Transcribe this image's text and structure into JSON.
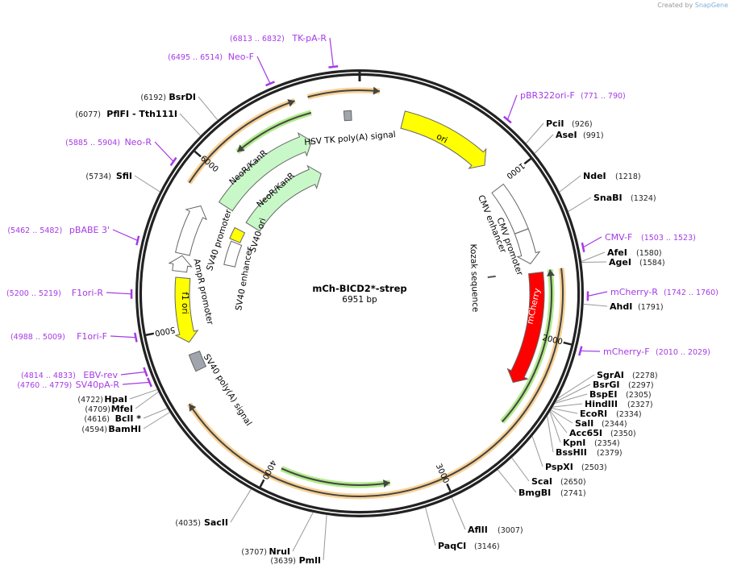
{
  "credit": {
    "prefix": "Created by",
    "brand": "SnapGene"
  },
  "plasmid": {
    "name": "mCh-BICD2*-strep",
    "length_label": "6951 bp",
    "length": 6951
  },
  "ticks": [
    "1000",
    "2000",
    "3000",
    "4000",
    "5000",
    "6000"
  ],
  "colors": {
    "yellow": "#ffff00",
    "lightgreen": "#c8f8c8",
    "red": "#ff0000",
    "grey": "#a0a4ac",
    "orange": "#f7c77c",
    "green": "#9ee66e",
    "primer": "#a53ae6"
  },
  "features": [
    {
      "name": "ori",
      "start": 270,
      "end": 855,
      "strand": 1,
      "color": "#ffff00",
      "shape": "arrow"
    },
    {
      "name": "CMV enhancer",
      "start": 1019,
      "end": 1332,
      "strand": 1,
      "color": "#ffffff",
      "shape": "box"
    },
    {
      "name": "CMV promoter",
      "start": 1333,
      "end": 1548,
      "strand": 1,
      "color": "#ffffff",
      "shape": "arrow"
    },
    {
      "name": "Kozak sequence",
      "start": 1600,
      "end": 1609,
      "strand": 0,
      "color": "#888888",
      "shape": "mark"
    },
    {
      "name": "mCherry",
      "start": 1610,
      "end": 2320,
      "strand": 1,
      "color": "#ff0000",
      "shape": "arrow"
    },
    {
      "name": "",
      "start": 1600,
      "end": 2550,
      "strand": -1,
      "color": "#9ee66e",
      "shape": "line"
    },
    {
      "name": "",
      "start": 3300,
      "end": 3940,
      "strand": -1,
      "color": "#9ee66e",
      "shape": "line"
    },
    {
      "name": "",
      "start": 1600,
      "end": 4576,
      "strand": 1,
      "color": "#f7c77c",
      "shape": "line"
    },
    {
      "name": "",
      "start": 5850,
      "end": 6592,
      "strand": 1,
      "color": "#f7c77c",
      "shape": "line"
    },
    {
      "name": "",
      "start": 6665,
      "end": 110,
      "strand": 1,
      "color": "#f7c77c",
      "shape": "line"
    },
    {
      "name": "",
      "start": 6163,
      "end": 6661,
      "strand": -1,
      "color": "#9ee66e",
      "shape": "line"
    },
    {
      "name": "NeoR/KanR",
      "start": 5850,
      "end": 6613,
      "strand": 1,
      "color": "#c8f8c8",
      "shape": "arrow"
    },
    {
      "name": "NeoR/KanR",
      "start": 5830,
      "end": 6607,
      "strand": 1,
      "color": "#c8f8c8",
      "shape": "arrow"
    },
    {
      "name": "HSV TK poly(A) signal",
      "start": 6855,
      "end": 6900,
      "strand": 0,
      "color": "#a0a4ac",
      "shape": "box"
    },
    {
      "name": "SV40 promoter",
      "start": 5456,
      "end": 5770,
      "strand": 1,
      "color": "#ffffff",
      "shape": "arrow"
    },
    {
      "name": "AmpR promoter",
      "start": 5348,
      "end": 5445,
      "strand": 1,
      "color": "#ffffff",
      "shape": "arrow"
    },
    {
      "name": "f1 ori",
      "start": 4904,
      "end": 5310,
      "strand": -1,
      "color": "#ffff00",
      "shape": "arrow"
    },
    {
      "name": "SV40 poly(A) signal",
      "start": 4722,
      "end": 4830,
      "strand": 0,
      "color": "#a0a4ac",
      "shape": "box"
    },
    {
      "name": "SV40 ori",
      "start": 5656,
      "end": 5750,
      "strand": 0,
      "color": "#ffff00",
      "shape": "box"
    },
    {
      "name": "SV40 enhancer",
      "start": 5445,
      "end": 5640,
      "strand": 0,
      "color": "#ffffff",
      "shape": "box"
    }
  ],
  "sites": [
    {
      "name": "PciI",
      "pos": "926",
      "bp": 926
    },
    {
      "name": "AseI",
      "pos": "991",
      "bp": 991
    },
    {
      "name": "NdeI",
      "pos": "1218",
      "bp": 1218
    },
    {
      "name": "SnaBI",
      "pos": "1324",
      "bp": 1324
    },
    {
      "name": "AfeI",
      "pos": "1580",
      "bp": 1580
    },
    {
      "name": "AgeI",
      "pos": "1584",
      "bp": 1584
    },
    {
      "name": "AhdI",
      "pos": "1791",
      "bp": 1791
    },
    {
      "name": "SgrAI",
      "pos": "2278",
      "bp": 2278
    },
    {
      "name": "BsrGI",
      "pos": "2297",
      "bp": 2297
    },
    {
      "name": "BspEI",
      "pos": "2305",
      "bp": 2305
    },
    {
      "name": "HindIII",
      "pos": "2327",
      "bp": 2327
    },
    {
      "name": "EcoRI",
      "pos": "2334",
      "bp": 2334
    },
    {
      "name": "SalI",
      "pos": "2344",
      "bp": 2344
    },
    {
      "name": "Acc65I",
      "pos": "2350",
      "bp": 2350
    },
    {
      "name": "KpnI",
      "pos": "2354",
      "bp": 2354
    },
    {
      "name": "BssHII",
      "pos": "2379",
      "bp": 2379
    },
    {
      "name": "PspXI",
      "pos": "2503",
      "bp": 2503
    },
    {
      "name": "ScaI",
      "pos": "2650",
      "bp": 2650
    },
    {
      "name": "BmgBI",
      "pos": "2741",
      "bp": 2741
    },
    {
      "name": "AflII",
      "pos": "3007",
      "bp": 3007
    },
    {
      "name": "PaqCI",
      "pos": "3146",
      "bp": 3146
    },
    {
      "name": "PmlI",
      "pos": "3639",
      "bp": 3639
    },
    {
      "name": "NruI",
      "pos": "3707",
      "bp": 3707
    },
    {
      "name": "SacII",
      "pos": "4035",
      "bp": 4035
    },
    {
      "name": "BamHI",
      "pos": "4594",
      "bp": 4594
    },
    {
      "name": "BclI *",
      "pos": "4616",
      "bp": 4616
    },
    {
      "name": "MfeI",
      "pos": "4709",
      "bp": 4709
    },
    {
      "name": "HpaI",
      "pos": "4722",
      "bp": 4722
    },
    {
      "name": "SfiI",
      "pos": "5734",
      "bp": 5734
    },
    {
      "name": "PflFI   - Tth111I",
      "pos": "6077",
      "bp": 6077
    },
    {
      "name": "BsrDI",
      "pos": "6192",
      "bp": 6192
    }
  ],
  "primers": [
    {
      "name": "pBR322ori-F",
      "range": "(771 .. 790)",
      "bp": 780
    },
    {
      "name": "CMV-F",
      "range": "(1503 .. 1523)",
      "bp": 1513
    },
    {
      "name": "mCherry-R",
      "range": "(1742 .. 1760)",
      "bp": 1751
    },
    {
      "name": "mCherry-F",
      "range": "(2010 .. 2029)",
      "bp": 2020
    },
    {
      "name": "SV40pA-R",
      "range": "(4760 .. 4779)",
      "bp": 4770
    },
    {
      "name": "EBV-rev",
      "range": "(4814 .. 4833)",
      "bp": 4824
    },
    {
      "name": "F1ori-F",
      "range": "(4988 .. 5009)",
      "bp": 4998
    },
    {
      "name": "F1ori-R",
      "range": "(5200 .. 5219)",
      "bp": 5210
    },
    {
      "name": "pBABE 3'",
      "range": "(5462 .. 5482)",
      "bp": 5472
    },
    {
      "name": "Neo-R",
      "range": "(5885 .. 5904)",
      "bp": 5895
    },
    {
      "name": "Neo-F",
      "range": "(6495 .. 6514)",
      "bp": 6505
    },
    {
      "name": "TK-pA-R",
      "range": "(6813 .. 6832)",
      "bp": 6823
    }
  ]
}
